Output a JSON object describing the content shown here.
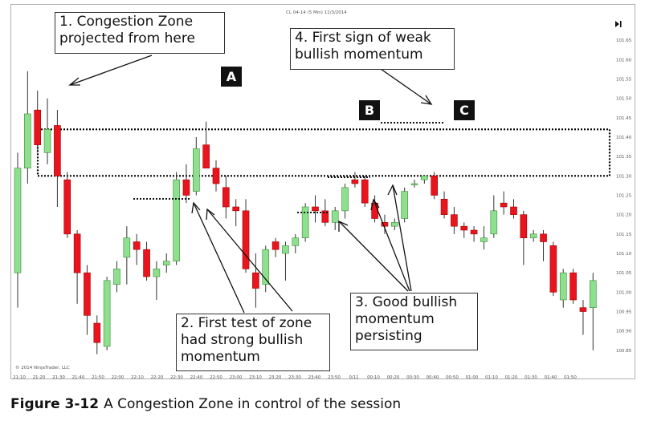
{
  "chart_data": {
    "type": "candlestick",
    "window_title": "CL 04-14 (5 Min)  11/3/2014",
    "watermark": "© 2014 NinjaTrader, LLC",
    "ylim": [
      100.8,
      101.7
    ],
    "y_ticks": [
      "101.65",
      "101.60",
      "101.55",
      "101.50",
      "101.45",
      "101.40",
      "101.35",
      "101.30",
      "101.25",
      "101.20",
      "101.15",
      "101.10",
      "101.05",
      "101.00",
      "100.95",
      "100.90",
      "100.85"
    ],
    "x_ticks": [
      "21:10",
      "21:20",
      "21:30",
      "21:40",
      "21:50",
      "22:00",
      "22:10",
      "22:20",
      "22:30",
      "22:40",
      "22:50",
      "23:00",
      "23:10",
      "23:20",
      "23:30",
      "23:40",
      "23:50",
      "0/11",
      "00:10",
      "00:20",
      "00:30",
      "00:40",
      "00:50",
      "01:00",
      "01:10",
      "01:20",
      "01:30",
      "01:40",
      "01:50"
    ],
    "candles": [
      {
        "o": 101.05,
        "h": 101.36,
        "l": 100.96,
        "c": 101.32
      },
      {
        "o": 101.32,
        "h": 101.57,
        "l": 101.28,
        "c": 101.46
      },
      {
        "o": 101.47,
        "h": 101.52,
        "l": 101.36,
        "c": 101.38
      },
      {
        "o": 101.36,
        "h": 101.5,
        "l": 101.33,
        "c": 101.42
      },
      {
        "o": 101.43,
        "h": 101.47,
        "l": 101.22,
        "c": 101.3
      },
      {
        "o": 101.29,
        "h": 101.31,
        "l": 101.14,
        "c": 101.15
      },
      {
        "o": 101.15,
        "h": 101.16,
        "l": 100.97,
        "c": 101.05
      },
      {
        "o": 101.05,
        "h": 101.07,
        "l": 100.89,
        "c": 100.94
      },
      {
        "o": 100.92,
        "h": 100.94,
        "l": 100.84,
        "c": 100.87
      },
      {
        "o": 100.86,
        "h": 101.04,
        "l": 100.85,
        "c": 101.03
      },
      {
        "o": 101.02,
        "h": 101.08,
        "l": 101.0,
        "c": 101.06
      },
      {
        "o": 101.09,
        "h": 101.17,
        "l": 101.02,
        "c": 101.14
      },
      {
        "o": 101.13,
        "h": 101.15,
        "l": 101.07,
        "c": 101.11
      },
      {
        "o": 101.11,
        "h": 101.13,
        "l": 101.03,
        "c": 101.04
      },
      {
        "o": 101.04,
        "h": 101.08,
        "l": 100.98,
        "c": 101.06
      },
      {
        "o": 101.07,
        "h": 101.1,
        "l": 101.05,
        "c": 101.08
      },
      {
        "o": 101.08,
        "h": 101.31,
        "l": 101.07,
        "c": 101.29
      },
      {
        "o": 101.29,
        "h": 101.33,
        "l": 101.23,
        "c": 101.25
      },
      {
        "o": 101.26,
        "h": 101.4,
        "l": 101.25,
        "c": 101.37
      },
      {
        "o": 101.38,
        "h": 101.44,
        "l": 101.32,
        "c": 101.32
      },
      {
        "o": 101.32,
        "h": 101.34,
        "l": 101.26,
        "c": 101.28
      },
      {
        "o": 101.27,
        "h": 101.3,
        "l": 101.19,
        "c": 101.22
      },
      {
        "o": 101.22,
        "h": 101.24,
        "l": 101.17,
        "c": 101.21
      },
      {
        "o": 101.21,
        "h": 101.24,
        "l": 101.05,
        "c": 101.06
      },
      {
        "o": 101.05,
        "h": 101.1,
        "l": 100.96,
        "c": 101.01
      },
      {
        "o": 101.02,
        "h": 101.12,
        "l": 101.0,
        "c": 101.11
      },
      {
        "o": 101.13,
        "h": 101.14,
        "l": 101.09,
        "c": 101.11
      },
      {
        "o": 101.1,
        "h": 101.13,
        "l": 101.03,
        "c": 101.12
      },
      {
        "o": 101.12,
        "h": 101.15,
        "l": 101.1,
        "c": 101.14
      },
      {
        "o": 101.14,
        "h": 101.23,
        "l": 101.13,
        "c": 101.22
      },
      {
        "o": 101.22,
        "h": 101.25,
        "l": 101.18,
        "c": 101.21
      },
      {
        "o": 101.21,
        "h": 101.24,
        "l": 101.17,
        "c": 101.18
      },
      {
        "o": 101.18,
        "h": 101.22,
        "l": 101.16,
        "c": 101.21
      },
      {
        "o": 101.21,
        "h": 101.28,
        "l": 101.19,
        "c": 101.27
      },
      {
        "o": 101.29,
        "h": 101.31,
        "l": 101.27,
        "c": 101.28
      },
      {
        "o": 101.29,
        "h": 101.3,
        "l": 101.22,
        "c": 101.23
      },
      {
        "o": 101.23,
        "h": 101.25,
        "l": 101.18,
        "c": 101.19
      },
      {
        "o": 101.18,
        "h": 101.2,
        "l": 101.15,
        "c": 101.17
      },
      {
        "o": 101.17,
        "h": 101.19,
        "l": 101.16,
        "c": 101.18
      },
      {
        "o": 101.19,
        "h": 101.27,
        "l": 101.18,
        "c": 101.26
      },
      {
        "o": 101.28,
        "h": 101.29,
        "l": 101.27,
        "c": 101.28
      },
      {
        "o": 101.29,
        "h": 101.3,
        "l": 101.28,
        "c": 101.3
      },
      {
        "o": 101.3,
        "h": 101.31,
        "l": 101.24,
        "c": 101.25
      },
      {
        "o": 101.24,
        "h": 101.26,
        "l": 101.19,
        "c": 101.2
      },
      {
        "o": 101.2,
        "h": 101.22,
        "l": 101.15,
        "c": 101.17
      },
      {
        "o": 101.17,
        "h": 101.18,
        "l": 101.14,
        "c": 101.16
      },
      {
        "o": 101.16,
        "h": 101.17,
        "l": 101.13,
        "c": 101.15
      },
      {
        "o": 101.13,
        "h": 101.17,
        "l": 101.11,
        "c": 101.14
      },
      {
        "o": 101.15,
        "h": 101.25,
        "l": 101.14,
        "c": 101.21
      },
      {
        "o": 101.23,
        "h": 101.26,
        "l": 101.2,
        "c": 101.22
      },
      {
        "o": 101.22,
        "h": 101.24,
        "l": 101.19,
        "c": 101.2
      },
      {
        "o": 101.2,
        "h": 101.21,
        "l": 101.07,
        "c": 101.14
      },
      {
        "o": 101.14,
        "h": 101.16,
        "l": 101.13,
        "c": 101.15
      },
      {
        "o": 101.15,
        "h": 101.16,
        "l": 101.08,
        "c": 101.13
      },
      {
        "o": 101.12,
        "h": 101.13,
        "l": 100.99,
        "c": 101.0
      },
      {
        "o": 100.98,
        "h": 101.06,
        "l": 100.96,
        "c": 101.05
      },
      {
        "o": 101.05,
        "h": 101.06,
        "l": 100.97,
        "c": 100.98
      },
      {
        "o": 100.96,
        "h": 100.98,
        "l": 100.89,
        "c": 100.95
      },
      {
        "o": 100.96,
        "h": 101.05,
        "l": 100.85,
        "c": 101.03
      }
    ],
    "congestion_zone": {
      "top": 101.42,
      "bottom": 101.3
    },
    "markers": [
      "A",
      "B",
      "C"
    ],
    "annotations": [
      "1. Congestion Zone projected from here",
      "2. First test of zone had strong bullish momentum",
      "3. Good bullish momentum persisting",
      "4. First sign of weak bullish momentum"
    ],
    "caption_label": "Figure 3-12",
    "caption_text": "A Congestion Zone in control of the session",
    "colors": {
      "up": "#8ee08e",
      "down": "#e8141e",
      "wick": "#333333",
      "zone": "#000000"
    }
  }
}
